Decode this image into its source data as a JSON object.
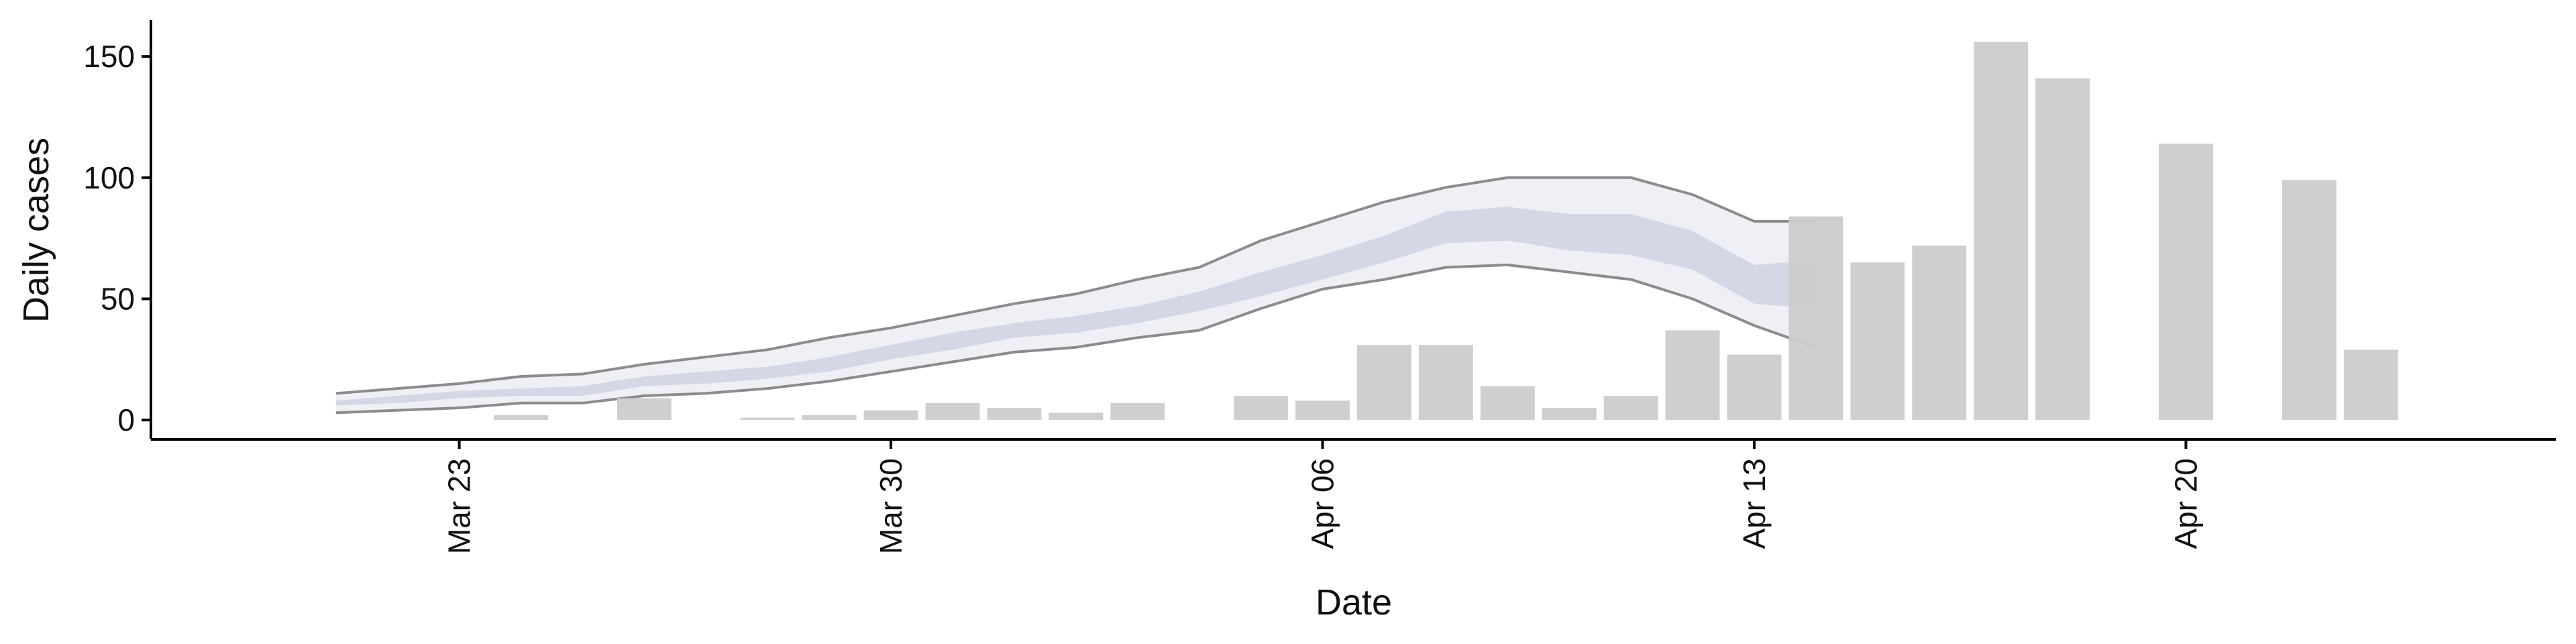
{
  "chart_data": {
    "type": "bar",
    "xlabel": "Date",
    "ylabel": "Daily cases",
    "ylim": [
      -8,
      165
    ],
    "xlim": [
      "2020-03-18",
      "2020-04-26"
    ],
    "x_ticks": [
      {
        "date": "2020-03-23",
        "label": "Mar 23"
      },
      {
        "date": "2020-03-30",
        "label": "Mar 30"
      },
      {
        "date": "2020-04-06",
        "label": "Apr 06"
      },
      {
        "date": "2020-04-13",
        "label": "Apr 13"
      },
      {
        "date": "2020-04-20",
        "label": "Apr 20"
      }
    ],
    "y_ticks": [
      0,
      50,
      100,
      150
    ],
    "grid": false,
    "colors": {
      "bars": "#cccccc",
      "band_outer": "#eef0f6",
      "band_inner": "#d4d8e6",
      "band_edge": "#8c8c8c"
    },
    "series": [
      {
        "type": "bar",
        "x": [
          "2020-03-24",
          "2020-03-26",
          "2020-03-28",
          "2020-03-29",
          "2020-03-30",
          "2020-03-31",
          "2020-04-01",
          "2020-04-02",
          "2020-04-03",
          "2020-04-05",
          "2020-04-06",
          "2020-04-07",
          "2020-04-08",
          "2020-04-09",
          "2020-04-10",
          "2020-04-11",
          "2020-04-12",
          "2020-04-13",
          "2020-04-14",
          "2020-04-15",
          "2020-04-16",
          "2020-04-17",
          "2020-04-18",
          "2020-04-20",
          "2020-04-22",
          "2020-04-23"
        ],
        "values": [
          2,
          9,
          1,
          2,
          4,
          7,
          5,
          3,
          7,
          10,
          8,
          31,
          31,
          14,
          5,
          10,
          37,
          27,
          84,
          65,
          72,
          156,
          141,
          114,
          99,
          29
        ]
      },
      {
        "type": "band",
        "x": [
          "2020-03-21",
          "2020-03-22",
          "2020-03-23",
          "2020-03-24",
          "2020-03-25",
          "2020-03-26",
          "2020-03-27",
          "2020-03-28",
          "2020-03-29",
          "2020-03-30",
          "2020-03-31",
          "2020-04-01",
          "2020-04-02",
          "2020-04-03",
          "2020-04-04",
          "2020-04-05",
          "2020-04-06",
          "2020-04-07",
          "2020-04-08",
          "2020-04-09",
          "2020-04-10",
          "2020-04-11",
          "2020-04-12",
          "2020-04-13",
          "2020-04-14"
        ],
        "outer_lower": [
          3,
          4,
          5,
          7,
          7,
          10,
          11,
          13,
          16,
          20,
          24,
          28,
          30,
          34,
          37,
          46,
          54,
          58,
          63,
          64,
          61,
          58,
          50,
          39,
          30
        ],
        "outer_upper": [
          11,
          13,
          15,
          18,
          19,
          23,
          26,
          29,
          34,
          38,
          43,
          48,
          52,
          58,
          63,
          74,
          82,
          90,
          96,
          100,
          100,
          100,
          93,
          82,
          82
        ],
        "inner_lower": [
          6,
          7,
          9,
          10,
          10,
          14,
          15,
          17,
          20,
          25,
          29,
          34,
          36,
          40,
          45,
          51,
          58,
          65,
          73,
          74,
          70,
          68,
          62,
          48,
          46
        ],
        "inner_upper": [
          8,
          10,
          12,
          13,
          14,
          18,
          20,
          22,
          26,
          31,
          36,
          40,
          43,
          47,
          53,
          61,
          68,
          76,
          86,
          88,
          85,
          85,
          78,
          64,
          66
        ]
      }
    ]
  }
}
